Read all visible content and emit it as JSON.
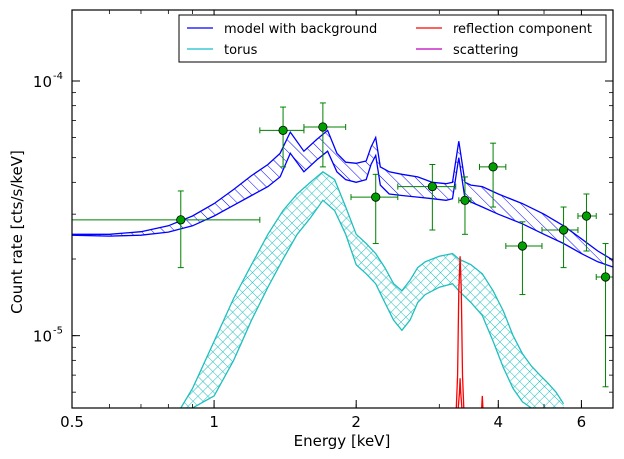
{
  "chart_data": {
    "type": "line",
    "title": "",
    "xlabel": "Energy [keV]",
    "ylabel": "Count rate [cts/s/keV]",
    "xscale": "log",
    "yscale": "log",
    "xlim": [
      0.5,
      7.0
    ],
    "ylim": [
      5.2e-06,
      0.00019
    ],
    "x_ticks": [
      {
        "value": 0.5,
        "label": "0.5"
      },
      {
        "value": 1,
        "label": "1"
      },
      {
        "value": 2,
        "label": "2"
      },
      {
        "value": 4,
        "label": "4"
      },
      {
        "value": 6,
        "label": "6"
      }
    ],
    "y_ticks": [
      {
        "value": 1e-05,
        "label": "10",
        "exp": "-5"
      },
      {
        "value": 0.0001,
        "label": "10",
        "exp": "-4"
      }
    ],
    "legend": {
      "placement": "top-right",
      "columns": 2,
      "entries": [
        {
          "label": "model with background",
          "color": "#0000ff"
        },
        {
          "label": "torus",
          "color": "#17becf"
        },
        {
          "label": "reflection component",
          "color": "#ff0000"
        },
        {
          "label": "scattering",
          "color": "#bf00bf"
        }
      ]
    },
    "colors": {
      "model": "#0000ff",
      "torus": "#1fbfbf",
      "reflection": "#ff0000",
      "data": "#008000",
      "marker": "#00a000"
    },
    "series": [
      {
        "name": "model with background",
        "kind": "band",
        "x": [
          0.5,
          0.6,
          0.7,
          0.8,
          0.9,
          1.0,
          1.1,
          1.2,
          1.3,
          1.38,
          1.45,
          1.55,
          1.65,
          1.74,
          1.82,
          1.9,
          2.0,
          2.1,
          2.15,
          2.2,
          2.25,
          2.35,
          2.5,
          2.7,
          2.9,
          3.1,
          3.2,
          3.3,
          3.4,
          3.5,
          3.7,
          4.0,
          4.5,
          5.0,
          5.5,
          6.0,
          6.5,
          7.0
        ],
        "upper": [
          2.5e-05,
          2.5e-05,
          2.56e-05,
          2.7e-05,
          2.95e-05,
          3.3e-05,
          3.75e-05,
          4.25e-05,
          4.7e-05,
          5.2e-05,
          6.3e-05,
          5.3e-05,
          5.9e-05,
          6.4e-05,
          5.2e-05,
          4.8e-05,
          4.75e-05,
          4.85e-05,
          5.5e-05,
          6e-05,
          4.6e-05,
          4.4e-05,
          4.3e-05,
          4.2e-05,
          4e-05,
          3.95e-05,
          4e-05,
          5.8e-05,
          4e-05,
          3.9e-05,
          3.85e-05,
          3.6e-05,
          3.3e-05,
          3e-05,
          2.7e-05,
          2.4e-05,
          2.15e-05,
          1.98e-05
        ],
        "lower": [
          2.48e-05,
          2.46e-05,
          2.48e-05,
          2.55e-05,
          2.7e-05,
          2.95e-05,
          3.25e-05,
          3.55e-05,
          3.85e-05,
          4.2e-05,
          5.2e-05,
          4.4e-05,
          4.9e-05,
          5.3e-05,
          4.4e-05,
          4.1e-05,
          4e-05,
          4.1e-05,
          4.7e-05,
          5.1e-05,
          3.9e-05,
          3.6e-05,
          3.55e-05,
          3.5e-05,
          3.45e-05,
          3.4e-05,
          3.45e-05,
          5e-05,
          3.45e-05,
          3.35e-05,
          3.2e-05,
          3e-05,
          2.75e-05,
          2.5e-05,
          2.3e-05,
          2.1e-05,
          1.95e-05,
          1.86e-05
        ]
      },
      {
        "name": "torus",
        "kind": "band",
        "x": [
          0.85,
          0.9,
          1.0,
          1.1,
          1.2,
          1.3,
          1.4,
          1.5,
          1.6,
          1.7,
          1.8,
          1.9,
          2.0,
          2.1,
          2.2,
          2.3,
          2.4,
          2.5,
          2.6,
          2.7,
          2.8,
          3.0,
          3.2,
          3.3,
          3.5,
          3.7,
          3.9,
          4.1,
          4.3,
          4.5,
          4.7,
          4.9,
          5.1,
          5.3,
          5.5
        ],
        "upper": [
          5.2e-06,
          6.2e-06,
          9.5e-06,
          1.4e-05,
          1.9e-05,
          2.5e-05,
          3.1e-05,
          3.6e-05,
          4e-05,
          4.4e-05,
          4.1e-05,
          3.2e-05,
          2.5e-05,
          2.3e-05,
          2.1e-05,
          1.85e-05,
          1.6e-05,
          1.5e-05,
          1.65e-05,
          1.85e-05,
          1.95e-05,
          2.05e-05,
          2.1e-05,
          2e-05,
          1.9e-05,
          1.75e-05,
          1.5e-05,
          1.25e-05,
          1e-05,
          8.5e-06,
          7.6e-06,
          7e-06,
          6.5e-06,
          6e-06,
          5.4e-06
        ],
        "lower": [
          5.2e-06,
          5.2e-06,
          5.8e-06,
          8e-06,
          1.15e-05,
          1.55e-05,
          2e-05,
          2.5e-05,
          2.9e-05,
          3.4e-05,
          3.1e-05,
          2.5e-05,
          1.9e-05,
          1.75e-05,
          1.6e-05,
          1.35e-05,
          1.15e-05,
          1.05e-05,
          1.15e-05,
          1.35e-05,
          1.45e-05,
          1.55e-05,
          1.6e-05,
          1.5e-05,
          1.35e-05,
          1.2e-05,
          9.5e-06,
          7.5e-06,
          6.2e-06,
          5.5e-06,
          5.2e-06,
          5.2e-06,
          5.2e-06,
          5.2e-06,
          5.2e-06
        ]
      },
      {
        "name": "reflection component",
        "kind": "line",
        "x": [
          3.26,
          3.28,
          3.3,
          3.32,
          3.34,
          3.36,
          3.38
        ],
        "y": [
          5.2e-06,
          7e-06,
          1.5e-05,
          2.05e-05,
          1.5e-05,
          7e-06,
          5.2e-06
        ]
      },
      {
        "name": "reflection component (lower)",
        "kind": "line",
        "x": [
          3.29,
          3.31,
          3.32,
          3.33,
          3.35
        ],
        "y": [
          5.2e-06,
          6e-06,
          6.8e-06,
          6e-06,
          5.2e-06
        ]
      },
      {
        "name": "reflection component (small line)",
        "kind": "line",
        "x": [
          3.69,
          3.7,
          3.71
        ],
        "y": [
          5.2e-06,
          5.8e-06,
          5.2e-06
        ]
      },
      {
        "name": "data",
        "kind": "errorbar",
        "points": [
          {
            "x": 0.85,
            "y": 2.85e-05,
            "xerr": [
              0.5,
              1.25
            ],
            "yerr": [
              1.85e-05,
              3.7e-05
            ]
          },
          {
            "x": 1.4,
            "y": 6.4e-05,
            "xerr": [
              1.25,
              1.55
            ],
            "yerr": [
              4.6e-05,
              7.9e-05
            ]
          },
          {
            "x": 1.7,
            "y": 6.6e-05,
            "xerr": [
              1.55,
              1.9
            ],
            "yerr": [
              4.6e-05,
              8.2e-05
            ]
          },
          {
            "x": 2.2,
            "y": 3.5e-05,
            "xerr": [
              1.95,
              2.45
            ],
            "yerr": [
              2.3e-05,
              4.3e-05
            ]
          },
          {
            "x": 2.9,
            "y": 3.85e-05,
            "xerr": [
              2.45,
              3.25
            ],
            "yerr": [
              2.6e-05,
              4.7e-05
            ]
          },
          {
            "x": 3.4,
            "y": 3.4e-05,
            "xerr": [
              3.3,
              3.5
            ],
            "yerr": [
              2.5e-05,
              4.2e-05
            ]
          },
          {
            "x": 3.9,
            "y": 4.6e-05,
            "xerr": [
              3.65,
              4.15
            ],
            "yerr": [
              3.2e-05,
              5.7e-05
            ]
          },
          {
            "x": 4.5,
            "y": 2.25e-05,
            "xerr": [
              4.15,
              4.95
            ],
            "yerr": [
              1.45e-05,
              2.8e-05
            ]
          },
          {
            "x": 5.5,
            "y": 2.6e-05,
            "xerr": [
              4.95,
              5.9
            ],
            "yerr": [
              1.85e-05,
              3.2e-05
            ]
          },
          {
            "x": 6.15,
            "y": 2.95e-05,
            "xerr": [
              5.9,
              6.45
            ],
            "yerr": [
              2.15e-05,
              3.6e-05
            ]
          },
          {
            "x": 6.75,
            "y": 1.7e-05,
            "xerr": [
              6.45,
              7.0
            ],
            "yerr": [
              6.3e-06,
              2.3e-05
            ]
          }
        ]
      }
    ]
  }
}
